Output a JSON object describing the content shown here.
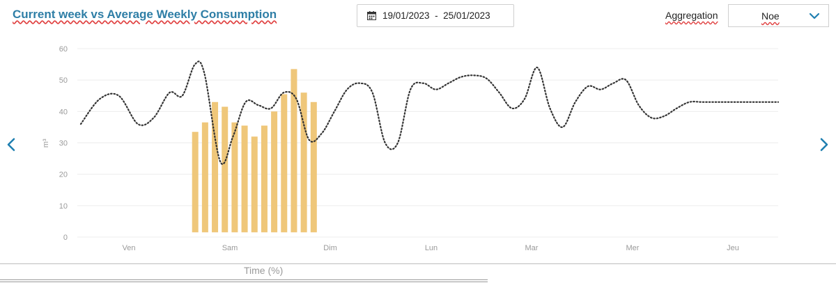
{
  "header": {
    "title": "Current week vs Average Weekly Consumption",
    "date_range": "19/01/2023  -  25/01/2023",
    "aggregation_label": "Aggregation",
    "aggregation_value": "Noe"
  },
  "icons": {
    "calendar": "calendar-icon",
    "dropdown": "chevron-down-icon",
    "prev": "chevron-left-icon",
    "next": "chevron-right-icon"
  },
  "colors": {
    "title": "#2e7ea6",
    "bars": "#efc77a",
    "line": "#333333",
    "nav": "#1f7fb0",
    "grid": "#ececec",
    "axis_text": "#9a9a9a"
  },
  "chart_data": {
    "type": "bar",
    "xlabel": "Time (%)",
    "ylabel": "m³",
    "ylim": [
      0,
      60
    ],
    "yticks": [
      0,
      10,
      20,
      30,
      40,
      50,
      60
    ],
    "grid": true,
    "categories": [
      "Ven",
      "Sam",
      "Dim",
      "Lun",
      "Mar",
      "Mer",
      "Jeu"
    ],
    "series": [
      {
        "type": "bar",
        "x": [
          0,
          1,
          2,
          3,
          4,
          5,
          6,
          7,
          8,
          9,
          10,
          11,
          12
        ],
        "values": [
          33.5,
          36.5,
          43,
          41.5,
          36.5,
          35.5,
          32,
          35.5,
          40,
          45.5,
          53.5,
          46,
          43
        ]
      },
      {
        "type": "line",
        "style": "dotted",
        "x": [
          0,
          3,
          6,
          9,
          11.5,
          14,
          16,
          18,
          19.5,
          22,
          24,
          26,
          28,
          30,
          32,
          34,
          36,
          38,
          40,
          42,
          44,
          46,
          48,
          50,
          52,
          54,
          56,
          58,
          60,
          62,
          64,
          66,
          68,
          70,
          72,
          74,
          76,
          78,
          80,
          82,
          84,
          86,
          88,
          90,
          92,
          94,
          96,
          98,
          100,
          102,
          104,
          106,
          108,
          110
        ],
        "values": [
          36,
          44,
          45,
          36,
          38,
          46,
          45,
          55,
          52,
          24,
          32,
          43,
          42,
          41,
          46,
          44,
          31,
          33,
          40,
          47,
          49,
          46,
          30,
          30,
          47,
          49,
          47,
          49,
          51,
          51.5,
          50.5,
          46,
          41,
          44,
          54,
          41,
          35,
          43,
          48,
          47,
          49,
          50,
          42,
          38,
          38.5,
          41,
          43,
          43,
          43,
          43,
          43,
          43,
          43,
          43
        ]
      }
    ]
  }
}
